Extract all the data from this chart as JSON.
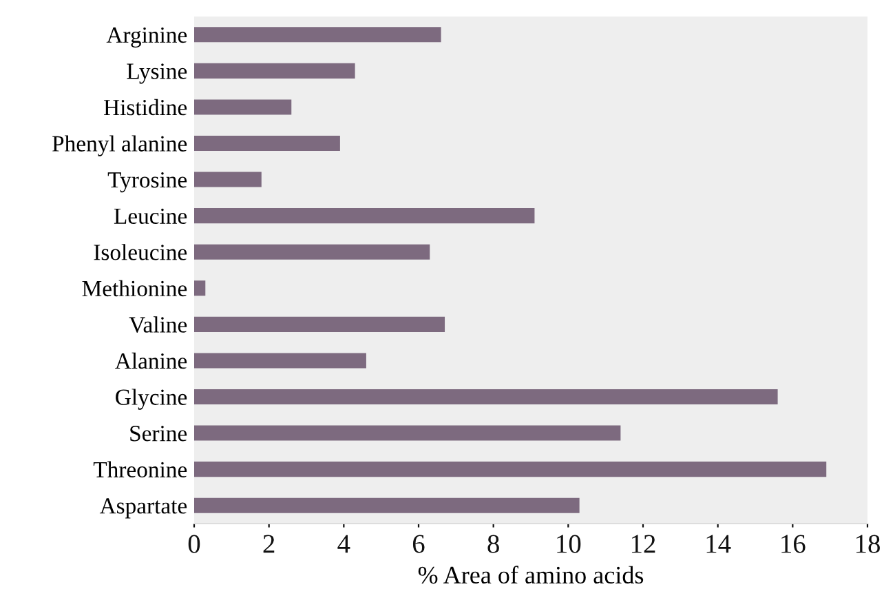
{
  "chart_data": {
    "type": "bar",
    "orientation": "horizontal",
    "xlabel": "% Area of amino acids",
    "categories": [
      "Arginine",
      "Lysine",
      "Histidine",
      "Phenyl alanine",
      "Tyrosine",
      "Leucine",
      "Isoleucine",
      "Methionine",
      "Valine",
      "Alanine",
      "Glycine",
      "Serine",
      "Threonine",
      "Aspartate"
    ],
    "values": [
      6.6,
      4.3,
      2.6,
      3.9,
      1.8,
      9.1,
      6.3,
      0.3,
      6.7,
      4.6,
      15.6,
      11.4,
      16.9,
      10.3
    ],
    "color": "#7d6a7f",
    "xlim": [
      0,
      18
    ],
    "xticks": [
      0,
      2,
      4,
      6,
      8,
      10,
      12,
      14,
      16,
      18
    ],
    "grid": false
  }
}
